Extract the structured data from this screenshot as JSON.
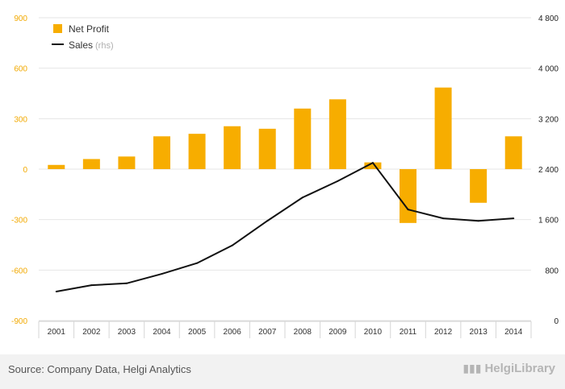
{
  "colors": {
    "bar": "#f7ad00",
    "line": "#111111",
    "left_axis_text": "#f2a900",
    "right_axis_text": "#222222",
    "grid": "#e6e6e6",
    "legend_muted": "#b0b0b0"
  },
  "legend": {
    "bar_label": "Net Profit",
    "line_label": "Sales",
    "line_suffix": "(rhs)"
  },
  "footer": {
    "source": "Source: Company Data, Helgi Analytics",
    "brand": "HelgiLibrary",
    "brand_icon": "chart-bars-icon"
  },
  "chart_data": {
    "type": "bar",
    "categories": [
      "2001",
      "2002",
      "2003",
      "2004",
      "2005",
      "2006",
      "2007",
      "2008",
      "2009",
      "2010",
      "2011",
      "2012",
      "2013",
      "2014"
    ],
    "series": [
      {
        "name": "Net Profit",
        "type": "bar",
        "axis": "left",
        "values": [
          25,
          60,
          75,
          195,
          210,
          255,
          240,
          360,
          415,
          40,
          -320,
          485,
          -200,
          195
        ]
      },
      {
        "name": "Sales (rhs)",
        "type": "line",
        "axis": "right",
        "values": [
          460,
          560,
          590,
          740,
          910,
          1190,
          1580,
          1950,
          2210,
          2500,
          1760,
          1620,
          1580,
          1620
        ]
      }
    ],
    "left_axis": {
      "min": -900,
      "max": 900,
      "ticks": [
        "900",
        "600",
        "300",
        "0",
        "-300",
        "-600",
        "-900"
      ],
      "tick_values": [
        900,
        600,
        300,
        0,
        -300,
        -600,
        -900
      ]
    },
    "right_axis": {
      "min": 0,
      "max": 4800,
      "ticks": [
        "4 800",
        "4 000",
        "3 200",
        "2 400",
        "1 600",
        "800",
        "0"
      ],
      "tick_values": [
        4800,
        4000,
        3200,
        2400,
        1600,
        800,
        0
      ]
    },
    "grid": true,
    "legend_position": "top-left"
  }
}
